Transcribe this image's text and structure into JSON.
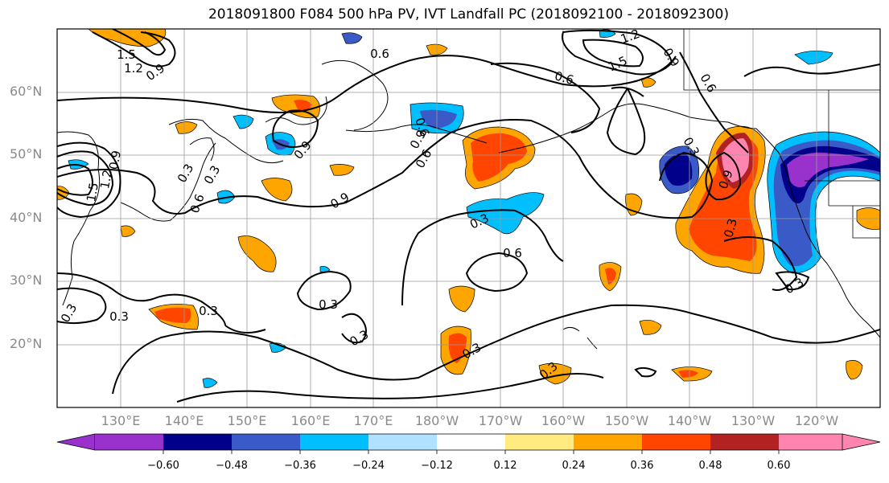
{
  "title": "2018091800 F084 500 hPa PV, IVT Landfall PC (2018092100 - 2018092300)",
  "lat_labels": [
    "60°N",
    "50°N",
    "40°N",
    "30°N",
    "20°N"
  ],
  "lon_labels": [
    "130°E",
    "140°E",
    "150°E",
    "160°E",
    "170°E",
    "180°W",
    "170°W",
    "160°W",
    "150°W",
    "140°W",
    "130°W",
    "120°W"
  ],
  "contour_labels": [
    "1.5",
    "1.2",
    "0.9",
    "0.6",
    "1.2",
    "1.5",
    "0.9",
    "0.6",
    "0.6",
    "0.6",
    "0.9",
    "0.9",
    "0.6",
    "0.9",
    "1.5",
    "1.2",
    "0.9",
    "0.6",
    "0.3",
    "0.9",
    "0.3",
    "0.3",
    "0.6",
    "0.3",
    "0.3",
    "0.3",
    "0.3",
    "0.3",
    "0.3",
    "0.3",
    "0.3",
    "0.3",
    "0.3"
  ],
  "colorbar": {
    "ticks": [
      "−0.60",
      "−0.48",
      "−0.36",
      "−0.24",
      "−0.12",
      "0.12",
      "0.24",
      "0.36",
      "0.48",
      "0.60"
    ],
    "colors": [
      "#9932cc",
      "#00008b",
      "#3a5bc7",
      "#00bfff",
      "#b0e2ff",
      "#ffffff",
      "#ffeb80",
      "#ffa500",
      "#ff4500",
      "#b22222",
      "#ff85b0"
    ]
  },
  "colors": {
    "purple": "#9932cc",
    "navy": "#00008b",
    "blue": "#3a5bc7",
    "cyan": "#00bfff",
    "lightblue": "#b0e2ff",
    "yellow": "#ffeb80",
    "orange": "#ffa500",
    "red": "#ff4500",
    "darkred": "#b22222",
    "pink": "#ff85b0"
  }
}
